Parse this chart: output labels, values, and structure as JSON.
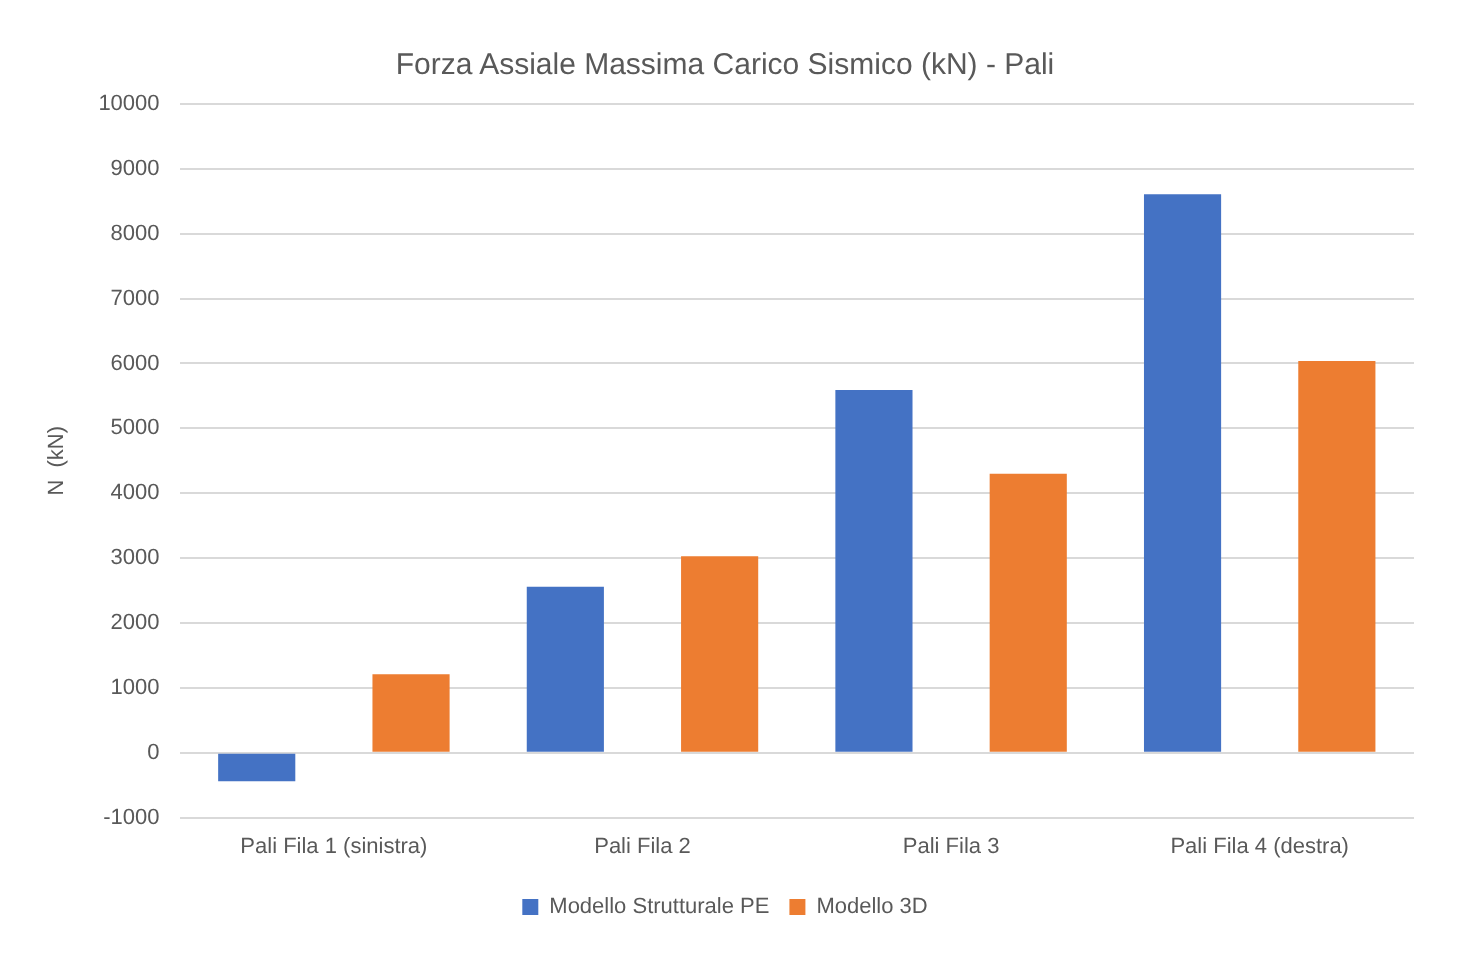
{
  "chart_data": {
    "type": "bar",
    "title": "Forza Assiale Massima Carico Sismico (kN) - Pali",
    "ylabel": "N  (kN)",
    "categories": [
      "Pali Fila 1 (sinistra)",
      "Pali Fila 2",
      "Pali Fila 3",
      "Pali Fila 4 (destra)"
    ],
    "series": [
      {
        "name": "Modello Strutturale PE",
        "color": "#4472c4",
        "values": [
          -440,
          2560,
          5590,
          8610
        ]
      },
      {
        "name": "Modello 3D",
        "color": "#ed7d31",
        "values": [
          1210,
          3030,
          4300,
          6040
        ]
      }
    ],
    "ylim": [
      -1000,
      10000
    ],
    "yticks": [
      -1000,
      0,
      1000,
      2000,
      3000,
      4000,
      5000,
      6000,
      7000,
      8000,
      9000,
      10000
    ],
    "grid": "y",
    "legend": "bottom"
  }
}
